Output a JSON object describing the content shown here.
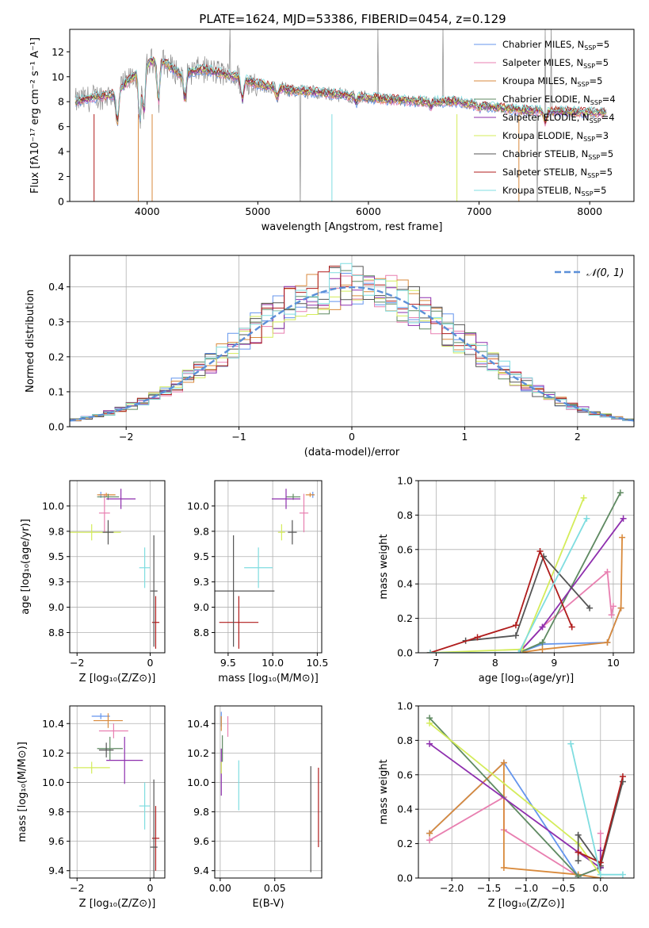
{
  "figure": {
    "title": "PLATE=1624, MJD=53386, FIBERID=0454, z=0.129"
  },
  "colors": {
    "chabrier_miles": "#6495ed",
    "salpeter_miles": "#e87fb0",
    "kroupa_miles": "#d98a3c",
    "chabrier_elodie": "#5f8a62",
    "salpeter_elodie": "#8e2fae",
    "kroupa_elodie": "#d4ec5a",
    "chabrier_stelib": "#555555",
    "salpeter_stelib": "#b01c1c",
    "kroupa_stelib": "#7fdde0",
    "data": "#8a8a8a",
    "gaussian": "#5b8fd8",
    "grid": "#b0b0b0"
  },
  "chart_data": [
    {
      "id": "spectrum",
      "type": "line",
      "title": "PLATE=1624, MJD=53386, FIBERID=0454, z=0.129",
      "xlabel": "wavelength [Angstrom, rest frame]",
      "ylabel": "Flux [fλ10⁻¹⁷ erg cm⁻² s⁻¹ A⁻¹]",
      "xlim": [
        3300,
        8400
      ],
      "ylim": [
        0,
        13.8
      ],
      "xticks": [
        4000,
        5000,
        6000,
        7000,
        8000
      ],
      "yticks": [
        0,
        2,
        4,
        6,
        8,
        10,
        12
      ],
      "grid": false,
      "legend_position": "top-right",
      "series": [
        {
          "name": "Chabrier MILES, N",
          "sub": "SSP",
          "suffix": "=5",
          "color": "#6495ed"
        },
        {
          "name": "Salpeter MILES, N",
          "sub": "SSP",
          "suffix": "=5",
          "color": "#e87fb0"
        },
        {
          "name": "Kroupa MILES, N",
          "sub": "SSP",
          "suffix": "=5",
          "color": "#d98a3c"
        },
        {
          "name": "Chabrier ELODIE, N",
          "sub": "SSP",
          "suffix": "=4",
          "color": "#5f8a62"
        },
        {
          "name": "Salpeter ELODIE, N",
          "sub": "SSP",
          "suffix": "=4",
          "color": "#8e2fae"
        },
        {
          "name": "Kroupa ELODIE, N",
          "sub": "SSP",
          "suffix": "=3",
          "color": "#d4ec5a"
        },
        {
          "name": "Chabrier STELIB, N",
          "sub": "SSP",
          "suffix": "=5",
          "color": "#555555"
        },
        {
          "name": "Salpeter STELIB, N",
          "sub": "SSP",
          "suffix": "=5",
          "color": "#b01c1c"
        },
        {
          "name": "Kroupa STELIB, N",
          "sub": "SSP",
          "suffix": "=5",
          "color": "#7fdde0"
        }
      ],
      "continuum": [
        [
          3350,
          8.0
        ],
        [
          3500,
          8.3
        ],
        [
          3700,
          8.6
        ],
        [
          3850,
          9.8
        ],
        [
          4000,
          11.0
        ],
        [
          4100,
          11.5
        ],
        [
          4300,
          10.2
        ],
        [
          4500,
          10.6
        ],
        [
          4800,
          10.0
        ],
        [
          5000,
          9.4
        ],
        [
          5300,
          8.9
        ],
        [
          5600,
          8.7
        ],
        [
          6000,
          8.3
        ],
        [
          6500,
          8.0
        ],
        [
          6800,
          8.0
        ],
        [
          7000,
          7.7
        ],
        [
          7400,
          7.3
        ],
        [
          7800,
          7.2
        ],
        [
          8150,
          7.1
        ]
      ],
      "dips": [
        [
          3730,
          6.0
        ],
        [
          3934,
          5.7
        ],
        [
          3969,
          6.7
        ],
        [
          4102,
          7.6
        ],
        [
          4340,
          7.9
        ],
        [
          4861,
          7.9
        ],
        [
          5175,
          8.2
        ],
        [
          5890,
          7.9
        ],
        [
          6563,
          7.6
        ],
        [
          7000,
          7.5
        ],
        [
          7600,
          6.2
        ]
      ]
    },
    {
      "id": "residuals",
      "type": "histogram",
      "xlabel": "(data-model)/error",
      "ylabel": "Normed distribution",
      "xlim": [
        -2.5,
        2.5
      ],
      "ylim": [
        0,
        0.49
      ],
      "xticks": [
        -2,
        -1,
        0,
        1,
        2
      ],
      "yticks": [
        0.0,
        0.1,
        0.2,
        0.3,
        0.4
      ],
      "grid": true,
      "legend": "𝒩(0, 1)",
      "legend_position": "top-right",
      "bin_width": 0.1
    },
    {
      "id": "age_vs_Z",
      "type": "errorbar",
      "xlabel": "Z [log₁₀(Z/Z⊙)]",
      "ylabel": "age  [log₁₀(age/yr)]",
      "xlim": [
        -2.2,
        0.4
      ],
      "ylim": [
        8.55,
        10.25
      ],
      "xticks": [
        -2,
        0
      ],
      "yticks": [
        8.75,
        9.0,
        9.25,
        9.5,
        9.75,
        10.0
      ],
      "grid": true,
      "points": [
        {
          "color": "#6495ed",
          "x": -1.35,
          "xerr": 0.05,
          "y": 10.11,
          "yerr": 0.03
        },
        {
          "color": "#e87fb0",
          "x": -1.25,
          "xerr": 0.15,
          "y": 9.93,
          "yerr": 0.19
        },
        {
          "color": "#d98a3c",
          "x": -1.2,
          "xerr": 0.25,
          "y": 10.11,
          "yerr": 0.02
        },
        {
          "color": "#5f8a62",
          "x": -1.15,
          "xerr": 0.3,
          "y": 10.09,
          "yerr": 0.03
        },
        {
          "color": "#8e2fae",
          "x": -0.8,
          "xerr": 0.4,
          "y": 10.07,
          "yerr": 0.1
        },
        {
          "color": "#d4ec5a",
          "x": -1.6,
          "xerr": 0.8,
          "y": 9.74,
          "yerr": 0.08
        },
        {
          "color": "#555555",
          "x": -1.15,
          "xerr": 0.15,
          "y": 9.74,
          "yerr": 0.12
        },
        {
          "color": "#7fdde0",
          "x": -0.15,
          "xerr": 0.15,
          "y": 9.39,
          "yerr": 0.2
        },
        {
          "color": "#b01c1c",
          "x": 0.15,
          "xerr": 0.1,
          "y": 8.85,
          "yerr": 0.26
        },
        {
          "color": "#555555",
          "x": 0.1,
          "xerr": 0.1,
          "y": 9.16,
          "yerr": 0.55
        }
      ]
    },
    {
      "id": "age_vs_mass",
      "type": "errorbar",
      "xlabel": "mass [log₁₀(M/M⊙)]",
      "ylabel": "",
      "xlim": [
        9.35,
        10.55
      ],
      "ylim": [
        8.55,
        10.25
      ],
      "xticks": [
        9.5,
        10.0,
        10.5
      ],
      "yticks": [
        8.75,
        9.0,
        9.25,
        9.5,
        9.75,
        10.0
      ],
      "grid": true,
      "points": [
        {
          "color": "#6495ed",
          "x": 10.45,
          "xerr": 0.02,
          "y": 10.11,
          "yerr": 0.03
        },
        {
          "color": "#e87fb0",
          "x": 10.35,
          "xerr": 0.05,
          "y": 9.93,
          "yerr": 0.19
        },
        {
          "color": "#d98a3c",
          "x": 10.42,
          "xerr": 0.05,
          "y": 10.11,
          "yerr": 0.02
        },
        {
          "color": "#5f8a62",
          "x": 10.23,
          "xerr": 0.08,
          "y": 10.09,
          "yerr": 0.03
        },
        {
          "color": "#8e2fae",
          "x": 10.15,
          "xerr": 0.16,
          "y": 10.07,
          "yerr": 0.1
        },
        {
          "color": "#d4ec5a",
          "x": 10.1,
          "xerr": 0.04,
          "y": 9.74,
          "yerr": 0.08
        },
        {
          "color": "#555555",
          "x": 10.22,
          "xerr": 0.05,
          "y": 9.74,
          "yerr": 0.12
        },
        {
          "color": "#7fdde0",
          "x": 9.84,
          "xerr": 0.16,
          "y": 9.39,
          "yerr": 0.2
        },
        {
          "color": "#b01c1c",
          "x": 9.62,
          "xerr": 0.22,
          "y": 8.85,
          "yerr": 0.26
        },
        {
          "color": "#555555",
          "x": 9.56,
          "xerr": 0.46,
          "y": 9.16,
          "yerr": 0.55
        }
      ]
    },
    {
      "id": "weight_vs_age",
      "type": "line",
      "xlabel": "age  [log₁₀(age/yr)]",
      "ylabel": "mass weight",
      "xlim": [
        6.7,
        10.35
      ],
      "ylim": [
        0,
        1.0
      ],
      "xticks": [
        7,
        8,
        9,
        10
      ],
      "yticks": [
        0.0,
        0.2,
        0.4,
        0.6,
        0.8,
        1.0
      ],
      "grid": true,
      "series": [
        {
          "name": "Chabrier MILES",
          "color": "#6495ed",
          "x": [
            6.9,
            8.4,
            8.8,
            9.9,
            10.13
          ],
          "y": [
            0.0,
            0.0,
            0.05,
            0.06,
            0.26
          ]
        },
        {
          "name": "Salpeter MILES",
          "color": "#e87fb0",
          "x": [
            6.9,
            8.4,
            8.8,
            9.9,
            9.97,
            10.0
          ],
          "y": [
            0.0,
            0.0,
            0.15,
            0.47,
            0.22,
            0.27
          ]
        },
        {
          "name": "Kroupa MILES",
          "color": "#d98a3c",
          "x": [
            6.9,
            8.4,
            8.8,
            9.9,
            10.13,
            10.15
          ],
          "y": [
            0.0,
            0.0,
            0.02,
            0.06,
            0.26,
            0.67
          ]
        },
        {
          "name": "Chabrier ELODIE",
          "color": "#5f8a62",
          "x": [
            6.9,
            8.4,
            8.8,
            10.12
          ],
          "y": [
            0.0,
            0.0,
            0.06,
            0.93
          ]
        },
        {
          "name": "Salpeter ELODIE",
          "color": "#8e2fae",
          "x": [
            6.9,
            8.4,
            8.8,
            10.17
          ],
          "y": [
            0.0,
            0.0,
            0.15,
            0.78
          ]
        },
        {
          "name": "Kroupa ELODIE",
          "color": "#d4ec5a",
          "x": [
            6.9,
            8.45,
            9.5
          ],
          "y": [
            0.0,
            0.02,
            0.9
          ]
        },
        {
          "name": "Chabrier STELIB",
          "color": "#555555",
          "x": [
            7.5,
            8.35,
            8.82,
            9.6
          ],
          "y": [
            0.07,
            0.1,
            0.56,
            0.26
          ]
        },
        {
          "name": "Salpeter STELIB",
          "color": "#b01c1c",
          "x": [
            6.9,
            7.7,
            8.35,
            8.76,
            9.3
          ],
          "y": [
            0.0,
            0.09,
            0.16,
            0.59,
            0.15
          ]
        },
        {
          "name": "Kroupa STELIB",
          "color": "#7fdde0",
          "x": [
            6.9,
            8.4,
            9.55
          ],
          "y": [
            0.0,
            0.0,
            0.78
          ]
        }
      ]
    },
    {
      "id": "mass_vs_Z",
      "type": "errorbar",
      "xlabel": "Z [log₁₀(Z/Z⊙)]",
      "ylabel": "mass [log₁₀(M/M⊙)]",
      "xlim": [
        -2.2,
        0.4
      ],
      "ylim": [
        9.35,
        10.52
      ],
      "xticks": [
        -2,
        0
      ],
      "yticks": [
        9.4,
        9.6,
        9.8,
        10.0,
        10.2,
        10.4
      ],
      "grid": true,
      "points": [
        {
          "color": "#6495ed",
          "x": -1.35,
          "xerr": 0.25,
          "y": 10.45,
          "yerr": 0.02
        },
        {
          "color": "#e87fb0",
          "x": -1.0,
          "xerr": 0.4,
          "y": 10.35,
          "yerr": 0.05
        },
        {
          "color": "#d98a3c",
          "x": -1.15,
          "xerr": 0.4,
          "y": 10.42,
          "yerr": 0.05
        },
        {
          "color": "#5f8a62",
          "x": -1.1,
          "xerr": 0.35,
          "y": 10.23,
          "yerr": 0.08
        },
        {
          "color": "#8e2fae",
          "x": -0.7,
          "xerr": 0.5,
          "y": 10.15,
          "yerr": 0.16
        },
        {
          "color": "#d4ec5a",
          "x": -1.6,
          "xerr": 0.5,
          "y": 10.1,
          "yerr": 0.04
        },
        {
          "color": "#555555",
          "x": -1.2,
          "xerr": 0.2,
          "y": 10.22,
          "yerr": 0.05
        },
        {
          "color": "#7fdde0",
          "x": -0.15,
          "xerr": 0.15,
          "y": 9.84,
          "yerr": 0.16
        },
        {
          "color": "#b01c1c",
          "x": 0.15,
          "xerr": 0.1,
          "y": 9.62,
          "yerr": 0.22
        },
        {
          "color": "#555555",
          "x": 0.1,
          "xerr": 0.1,
          "y": 9.56,
          "yerr": 0.46
        }
      ]
    },
    {
      "id": "mass_vs_EBV",
      "type": "errorbar",
      "xlabel": "E(B-V)",
      "ylabel": "",
      "xlim": [
        -0.005,
        0.093
      ],
      "ylim": [
        9.35,
        10.52
      ],
      "xticks": [
        0.0,
        0.05
      ],
      "yticks": [
        9.4,
        9.6,
        9.8,
        10.0,
        10.2,
        10.4
      ],
      "grid": true,
      "points": [
        {
          "color": "#6495ed",
          "x": 0.001,
          "xerr": 0,
          "y": 10.43,
          "yerr": 0.05
        },
        {
          "color": "#e87fb0",
          "x": 0.007,
          "xerr": 0,
          "y": 10.38,
          "yerr": 0.07
        },
        {
          "color": "#d98a3c",
          "x": 0.001,
          "xerr": 0,
          "y": 10.4,
          "yerr": 0.05
        },
        {
          "color": "#5f8a62",
          "x": 0.002,
          "xerr": 0,
          "y": 10.23,
          "yerr": 0.09
        },
        {
          "color": "#8e2fae",
          "x": 0.001,
          "xerr": 0,
          "y": 10.07,
          "yerr": 0.16
        },
        {
          "color": "#d4ec5a",
          "x": 0.001,
          "xerr": 0,
          "y": 10.1,
          "yerr": 0.04
        },
        {
          "color": "#7fdde0",
          "x": 0.017,
          "xerr": 0,
          "y": 9.98,
          "yerr": 0.17
        },
        {
          "color": "#555555",
          "x": 0.083,
          "xerr": 0,
          "y": 9.75,
          "yerr": 0.36
        },
        {
          "color": "#b01c1c",
          "x": 0.09,
          "xerr": 0,
          "y": 9.83,
          "yerr": 0.27
        }
      ]
    },
    {
      "id": "weight_vs_Z",
      "type": "line",
      "xlabel": "Z [log₁₀(Z/Z⊙)]",
      "ylabel": "mass weight",
      "xlim": [
        -2.45,
        0.45
      ],
      "ylim": [
        0,
        1.0
      ],
      "xticks": [
        -2.0,
        -1.5,
        -1.0,
        -0.5,
        0.0
      ],
      "yticks": [
        0.0,
        0.2,
        0.4,
        0.6,
        0.8,
        1.0
      ],
      "grid": true,
      "series": [
        {
          "name": "Chabrier MILES",
          "color": "#6495ed",
          "x": [
            -2.3,
            -1.3,
            -0.3,
            0.0
          ],
          "y": [
            0.26,
            0.67,
            0.01,
            0.06
          ]
        },
        {
          "name": "Salpeter MILES",
          "color": "#e87fb0",
          "x": [
            -2.3,
            -1.3,
            -1.3,
            -0.3,
            0.0,
            0.0
          ],
          "y": [
            0.22,
            0.47,
            0.28,
            0.01,
            0.06,
            0.26
          ]
        },
        {
          "name": "Kroupa MILES",
          "color": "#d98a3c",
          "x": [
            -2.3,
            -1.3,
            -1.3,
            -0.3,
            0.0
          ],
          "y": [
            0.26,
            0.67,
            0.06,
            0.02,
            0.0
          ]
        },
        {
          "name": "Chabrier ELODIE",
          "color": "#5f8a62",
          "x": [
            -2.3,
            -0.3,
            0.0
          ],
          "y": [
            0.93,
            0.01,
            0.06
          ]
        },
        {
          "name": "Salpeter ELODIE",
          "color": "#8e2fae",
          "x": [
            -2.3,
            -0.3,
            0.0,
            0.0
          ],
          "y": [
            0.78,
            0.15,
            0.06,
            0.16
          ]
        },
        {
          "name": "Kroupa ELODIE",
          "color": "#d4ec5a",
          "x": [
            -2.3,
            -0.3,
            0.0
          ],
          "y": [
            0.9,
            0.2,
            0.02
          ]
        },
        {
          "name": "Chabrier STELIB",
          "color": "#555555",
          "x": [
            -0.3,
            -0.3,
            0.0,
            0.3
          ],
          "y": [
            0.1,
            0.25,
            0.07,
            0.56
          ]
        },
        {
          "name": "Salpeter STELIB",
          "color": "#b01c1c",
          "x": [
            -0.3,
            0.0,
            0.3
          ],
          "y": [
            0.15,
            0.09,
            0.59
          ]
        },
        {
          "name": "Kroupa STELIB",
          "color": "#7fdde0",
          "x": [
            -0.4,
            0.0,
            0.3
          ],
          "y": [
            0.78,
            0.02,
            0.02
          ]
        }
      ]
    }
  ]
}
